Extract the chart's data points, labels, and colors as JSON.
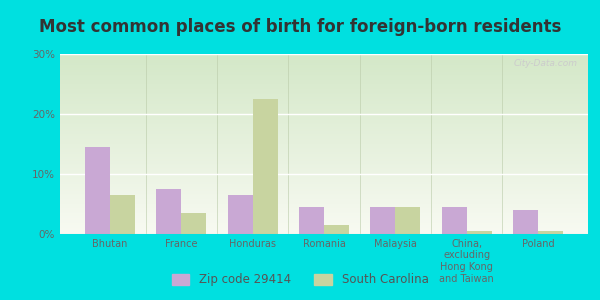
{
  "title": "Most common places of birth for foreign-born residents",
  "categories": [
    "Bhutan",
    "France",
    "Honduras",
    "Romania",
    "Malaysia",
    "China,\nexcluding\nHong Kong\nand Taiwan",
    "Poland"
  ],
  "zip_values": [
    14.5,
    7.5,
    6.5,
    4.5,
    4.5,
    4.5,
    4.0
  ],
  "sc_values": [
    6.5,
    3.5,
    22.5,
    1.5,
    4.5,
    0.5,
    0.5
  ],
  "zip_color": "#c9a8d4",
  "sc_color": "#c8d4a0",
  "background_outer": "#00e0e0",
  "bg_top": "#d4e8c8",
  "bg_bottom": "#f8faf2",
  "ylim": [
    0,
    30
  ],
  "yticks": [
    0,
    10,
    20,
    30
  ],
  "ytick_labels": [
    "0%",
    "10%",
    "20%",
    "30%"
  ],
  "legend_zip_label": "Zip code 29414",
  "legend_sc_label": "South Carolina",
  "title_fontsize": 12,
  "bar_width": 0.35,
  "watermark": "City-Data.com"
}
